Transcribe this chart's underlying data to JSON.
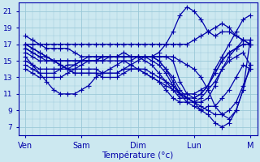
{
  "xlabel": "Température (°c)",
  "background_color": "#cce8f0",
  "grid_color": "#9ac8d8",
  "line_color": "#0000aa",
  "marker": "+",
  "markersize": 4,
  "linewidth": 0.9,
  "ylim": [
    6,
    22
  ],
  "yticks": [
    7,
    9,
    11,
    13,
    15,
    17,
    19,
    21
  ],
  "n_days": 4.2,
  "day_tick_positions": [
    0,
    8,
    16,
    24,
    32
  ],
  "day_labels": [
    "Ven",
    "Sam",
    "Dim",
    "Lun",
    "M"
  ],
  "series": [
    [
      17.0,
      17.0,
      17.0,
      17.0,
      17.0,
      17.0,
      17.0,
      17.0,
      17.0,
      17.0,
      17.0,
      17.0,
      17.0,
      17.0,
      17.0,
      17.0,
      17.0,
      17.0,
      17.0,
      17.0,
      17.0,
      17.0,
      17.0,
      17.0,
      17.5,
      18.0,
      18.5,
      19.0,
      19.5,
      19.0,
      18.0,
      17.5,
      17.0
    ],
    [
      18.0,
      17.5,
      17.0,
      16.5,
      16.5,
      16.5,
      16.5,
      16.0,
      15.5,
      15.5,
      15.5,
      15.5,
      15.5,
      15.5,
      16.0,
      15.5,
      15.5,
      15.5,
      15.5,
      16.0,
      17.0,
      18.5,
      20.5,
      21.5,
      21.0,
      20.0,
      18.5,
      18.0,
      18.5,
      18.5,
      18.0,
      17.5,
      17.0
    ],
    [
      17.0,
      16.5,
      16.0,
      15.5,
      15.0,
      14.5,
      14.0,
      14.0,
      14.0,
      14.0,
      14.0,
      13.5,
      13.5,
      13.5,
      14.0,
      14.5,
      15.0,
      15.5,
      15.5,
      15.5,
      15.5,
      15.0,
      12.5,
      11.0,
      10.5,
      11.0,
      12.0,
      14.0,
      15.5,
      17.0,
      18.5,
      20.0,
      20.5
    ],
    [
      17.0,
      16.5,
      16.0,
      15.5,
      15.0,
      14.5,
      14.0,
      13.5,
      13.5,
      13.5,
      13.5,
      13.0,
      13.0,
      13.0,
      13.5,
      14.0,
      14.0,
      14.0,
      13.5,
      13.0,
      12.5,
      12.0,
      11.0,
      10.5,
      10.0,
      10.0,
      10.5,
      12.0,
      14.0,
      15.5,
      16.5,
      17.5,
      17.5
    ],
    [
      16.5,
      16.0,
      15.5,
      15.0,
      15.0,
      14.5,
      14.0,
      13.5,
      13.5,
      13.5,
      13.5,
      13.5,
      13.5,
      13.5,
      14.0,
      14.0,
      14.0,
      13.5,
      13.0,
      12.5,
      12.0,
      11.5,
      11.0,
      11.0,
      11.0,
      11.5,
      12.0,
      13.5,
      15.0,
      16.0,
      16.5,
      17.0,
      17.0
    ],
    [
      16.5,
      16.0,
      15.5,
      15.5,
      15.0,
      15.0,
      15.0,
      15.0,
      15.0,
      15.0,
      15.0,
      15.0,
      15.5,
      15.5,
      15.5,
      15.5,
      15.5,
      15.5,
      15.5,
      15.0,
      14.0,
      13.0,
      11.5,
      10.5,
      10.0,
      9.5,
      9.0,
      8.5,
      8.5,
      9.0,
      10.0,
      12.0,
      14.0
    ],
    [
      16.0,
      15.5,
      15.0,
      15.0,
      15.0,
      15.0,
      15.0,
      15.0,
      15.0,
      15.5,
      15.5,
      15.5,
      15.5,
      15.5,
      15.5,
      15.5,
      15.5,
      15.5,
      15.0,
      14.5,
      13.5,
      12.0,
      11.0,
      10.5,
      10.0,
      9.0,
      8.5,
      7.5,
      7.0,
      7.5,
      9.0,
      11.5,
      14.5
    ],
    [
      15.5,
      14.5,
      13.5,
      12.5,
      11.5,
      11.0,
      11.0,
      11.0,
      11.5,
      12.0,
      13.0,
      13.5,
      14.0,
      14.5,
      15.0,
      15.0,
      15.5,
      15.5,
      15.5,
      15.5,
      15.5,
      15.5,
      15.0,
      14.5,
      14.0,
      13.0,
      11.5,
      9.5,
      8.5,
      8.0,
      9.0,
      11.5,
      17.5
    ],
    [
      15.0,
      14.5,
      14.0,
      14.0,
      14.0,
      14.0,
      14.5,
      14.5,
      15.0,
      15.0,
      15.0,
      15.5,
      15.5,
      15.5,
      15.5,
      15.5,
      15.5,
      15.5,
      15.5,
      15.0,
      14.0,
      12.5,
      11.0,
      10.0,
      9.5,
      9.0,
      9.5,
      9.5,
      10.5,
      11.5,
      13.0,
      14.5,
      14.0
    ],
    [
      14.5,
      14.0,
      13.5,
      13.5,
      13.5,
      14.0,
      14.0,
      14.5,
      15.0,
      15.0,
      15.0,
      15.5,
      15.5,
      15.5,
      15.5,
      15.5,
      15.5,
      15.0,
      14.5,
      13.5,
      12.5,
      11.5,
      10.5,
      10.5,
      10.5,
      11.0,
      12.0,
      13.5,
      15.0,
      16.0,
      16.5,
      17.0,
      17.0
    ],
    [
      14.0,
      13.5,
      13.0,
      13.0,
      13.0,
      13.0,
      13.5,
      14.0,
      14.5,
      15.0,
      15.0,
      15.0,
      15.0,
      15.0,
      15.0,
      14.5,
      14.0,
      13.5,
      13.0,
      12.5,
      11.5,
      10.5,
      10.0,
      10.0,
      10.0,
      10.5,
      11.5,
      12.5,
      14.0,
      15.0,
      15.5,
      16.0,
      14.5
    ]
  ],
  "xlim": [
    -1,
    33
  ],
  "n_points_per_day": 8
}
